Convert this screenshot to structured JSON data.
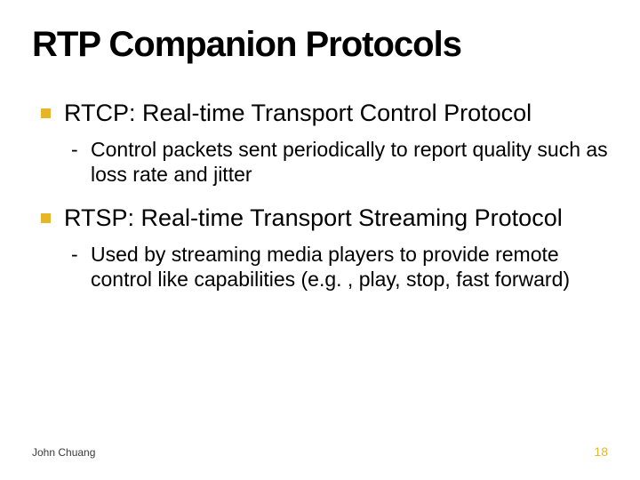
{
  "title": "RTP Companion Protocols",
  "bullets": [
    {
      "text": "RTCP: Real-time Transport Control Protocol",
      "sub": [
        "Control packets sent periodically to report quality such as loss rate and jitter"
      ]
    },
    {
      "text": "RTSP: Real-time Transport Streaming Protocol",
      "sub": [
        "Used by streaming media players to provide remote control like capabilities (e.g. , play, stop, fast forward)"
      ]
    }
  ],
  "footer": {
    "author": "John Chuang",
    "page": "18"
  },
  "style": {
    "accent_color": "#e7b628",
    "background_color": "#ffffff",
    "text_color": "#000000",
    "title_fontsize": 40,
    "title_weight": 900,
    "l1_fontsize": 27,
    "l2_fontsize": 23,
    "author_fontsize": 12,
    "page_fontsize": 14
  }
}
